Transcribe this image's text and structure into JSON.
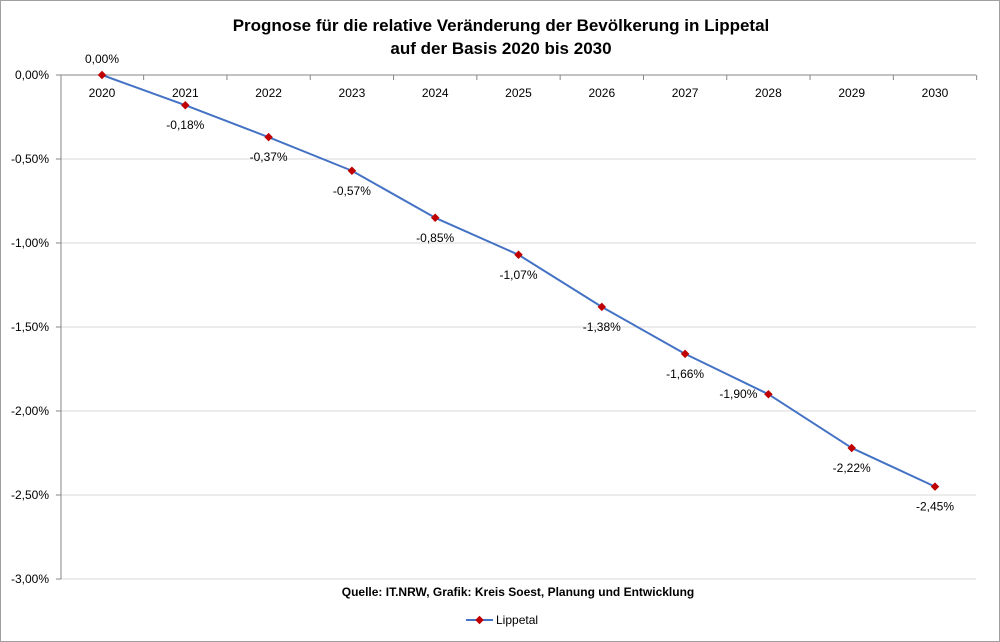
{
  "chart_data": {
    "type": "line",
    "title_line1": "Prognose für die relative Veränderung der Bevölkerung in Lippetal",
    "title_line2": "auf der Basis 2020 bis 2030",
    "categories": [
      "2020",
      "2021",
      "2022",
      "2023",
      "2024",
      "2025",
      "2026",
      "2027",
      "2028",
      "2029",
      "2030"
    ],
    "series": [
      {
        "name": "Lippetal",
        "values": [
          0.0,
          -0.18,
          -0.37,
          -0.57,
          -0.85,
          -1.07,
          -1.38,
          -1.66,
          -1.9,
          -2.22,
          -2.45
        ],
        "labels": [
          "0,00%",
          "-0,18%",
          "-0,37%",
          "-0,57%",
          "-0,85%",
          "-1,07%",
          "-1,38%",
          "-1,66%",
          "-1,90%",
          "-2,22%",
          "-2,45%"
        ]
      }
    ],
    "ylim": [
      -3.0,
      0.0
    ],
    "yticks": [
      0.0,
      -0.5,
      -1.0,
      -1.5,
      -2.0,
      -2.5,
      -3.0
    ],
    "ytick_labels": [
      "0,00%",
      "-0,50%",
      "-1,00%",
      "-1,50%",
      "-2,00%",
      "-2,50%",
      "-3,00%"
    ],
    "grid": true,
    "source_note": "Quelle: IT.NRW, Grafik: Kreis Soest, Planung und Entwicklung",
    "legend_position": "bottom",
    "colors": {
      "line": "#4472c4",
      "marker": "#c00000",
      "grid": "#d9d9d9",
      "axis": "#868686"
    }
  }
}
